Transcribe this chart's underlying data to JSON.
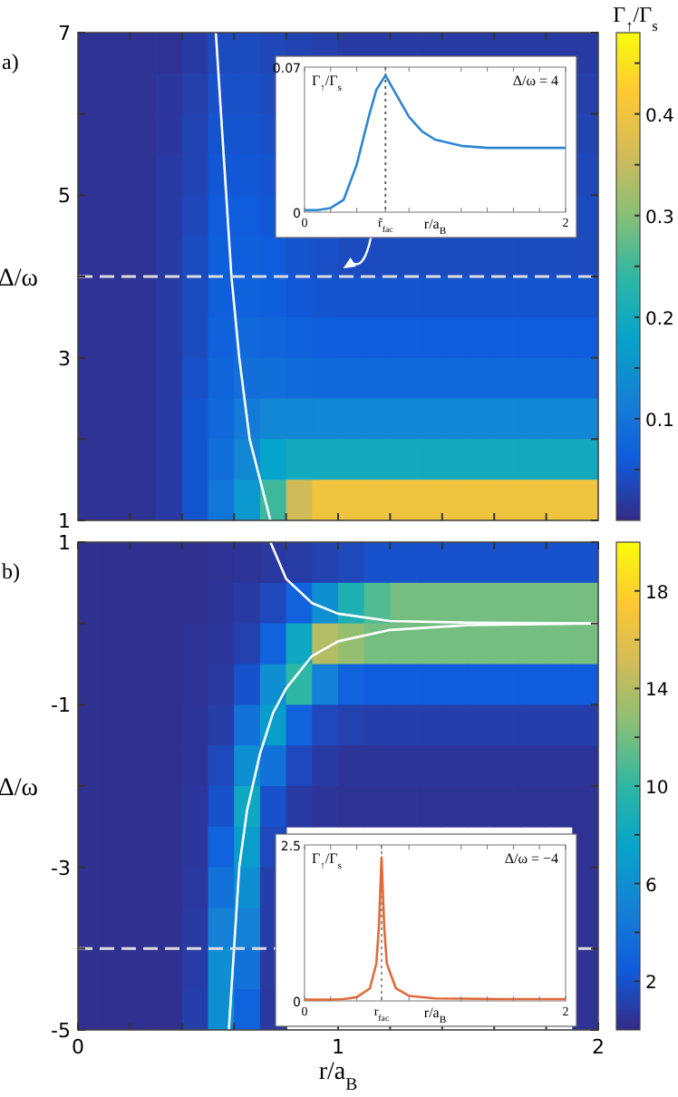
{
  "chart_data": [
    {
      "type": "heatmap",
      "ylabel": "Δ/ω",
      "clabel": "Γ$_{↑}$/Γ$_{s}$",
      "annotations": [
        "a)"
      ],
      "tick_labels": "y",
      "x": [
        0.05,
        0.15,
        0.25,
        0.35,
        0.45,
        0.55,
        0.65,
        0.75,
        0.85,
        0.95,
        1.05,
        1.15,
        1.25,
        1.35,
        1.45,
        1.55,
        1.65,
        1.75,
        1.85,
        1.95
      ],
      "y": [
        6.75,
        6.25,
        5.75,
        5.25,
        4.75,
        4.25,
        3.75,
        3.25,
        2.75,
        2.25,
        1.75,
        1.25
      ],
      "xlim": [
        0,
        2
      ],
      "xticks": [
        {
          "value": 0.2,
          "label": null
        },
        {
          "value": 0.4,
          "label": null
        },
        {
          "value": 0.6,
          "label": null
        },
        {
          "value": 0.8,
          "label": null
        },
        {
          "value": 1,
          "label": null
        },
        {
          "value": 1.2,
          "label": null
        },
        {
          "value": 1.4,
          "label": null
        },
        {
          "value": 1.6,
          "label": null
        },
        {
          "value": 1.8,
          "label": null
        }
      ],
      "ylim": [
        1,
        7
      ],
      "yticks": [
        1,
        {
          "value": 2,
          "label": null
        },
        3,
        {
          "value": 4,
          "label": null
        },
        5,
        {
          "value": 6,
          "label": null
        },
        7
      ],
      "clim": [
        0,
        0.48
      ],
      "cticks": [
        {
          "value": 0.05,
          "label": null
        },
        0.1,
        {
          "value": 0.15,
          "label": null
        },
        0.2,
        {
          "value": 0.25,
          "label": null
        },
        0.3,
        {
          "value": 0.35,
          "label": null
        },
        0.4,
        {
          "value": 0.45,
          "label": null
        }
      ],
      "cells": [
        [
          0.01,
          0.01,
          0.01,
          0.01,
          0.02,
          0.04,
          0.04,
          0.035,
          0.03,
          0.025,
          0.02,
          0.02,
          0.02,
          0.02,
          0.02,
          0.02,
          0.02,
          0.02,
          0.02,
          0.02
        ],
        [
          0.01,
          0.01,
          0.01,
          0.015,
          0.025,
          0.045,
          0.045,
          0.04,
          null,
          null,
          null,
          null,
          null,
          null,
          null,
          null,
          null,
          null,
          null,
          0.025
        ],
        [
          0.01,
          0.01,
          0.01,
          0.015,
          0.03,
          0.05,
          0.05,
          0.045,
          null,
          null,
          null,
          null,
          null,
          null,
          null,
          null,
          null,
          null,
          null,
          0.03
        ],
        [
          0.01,
          0.01,
          0.01,
          0.02,
          0.03,
          0.055,
          0.055,
          0.05,
          null,
          null,
          null,
          null,
          null,
          null,
          null,
          null,
          null,
          null,
          null,
          0.035
        ],
        [
          0.01,
          0.01,
          0.01,
          0.02,
          0.035,
          0.06,
          0.06,
          0.055,
          null,
          null,
          null,
          null,
          null,
          null,
          null,
          null,
          null,
          null,
          null,
          0.04
        ],
        [
          0.01,
          0.01,
          0.01,
          0.02,
          0.04,
          0.065,
          0.065,
          0.06,
          0.05,
          0.045,
          0.04,
          0.04,
          0.04,
          0.04,
          0.04,
          0.04,
          0.04,
          0.04,
          0.04,
          0.04
        ],
        [
          0.01,
          0.01,
          0.01,
          0.02,
          0.04,
          0.065,
          0.07,
          0.065,
          0.055,
          0.05,
          0.05,
          0.05,
          0.05,
          0.05,
          0.05,
          0.05,
          0.05,
          0.05,
          0.05,
          0.05
        ],
        [
          0.01,
          0.01,
          0.01,
          0.02,
          0.04,
          0.07,
          0.08,
          0.075,
          0.07,
          0.065,
          0.06,
          0.06,
          0.06,
          0.06,
          0.06,
          0.06,
          0.06,
          0.06,
          0.06,
          0.06
        ],
        [
          0.01,
          0.01,
          0.01,
          0.02,
          0.045,
          0.075,
          0.09,
          0.09,
          0.085,
          0.08,
          0.08,
          0.08,
          0.08,
          0.08,
          0.08,
          0.08,
          0.08,
          0.08,
          0.08,
          0.08
        ],
        [
          0.01,
          0.01,
          0.01,
          0.02,
          0.05,
          0.08,
          0.11,
          0.13,
          0.13,
          0.13,
          0.13,
          0.13,
          0.13,
          0.13,
          0.13,
          0.13,
          0.13,
          0.13,
          0.13,
          0.13
        ],
        [
          0.01,
          0.01,
          0.01,
          0.02,
          0.05,
          0.09,
          0.13,
          0.18,
          0.2,
          0.2,
          0.2,
          0.2,
          0.2,
          0.2,
          0.2,
          0.2,
          0.2,
          0.2,
          0.2,
          0.2
        ],
        [
          0.01,
          0.01,
          0.01,
          0.02,
          0.05,
          0.1,
          0.16,
          0.25,
          0.36,
          0.4,
          0.4,
          0.4,
          0.4,
          0.4,
          0.4,
          0.4,
          0.4,
          0.4,
          0.4,
          0.4
        ]
      ],
      "series": [
        {
          "type": "line",
          "color": "#ffffff",
          "x": [
            0.53,
            0.55,
            0.57,
            0.59,
            0.62,
            0.66,
            0.7,
            0.74
          ],
          "values": [
            7,
            6,
            5,
            4,
            3,
            2,
            1.5,
            1
          ]
        }
      ],
      "ref_lines": [
        {
          "axis": "y",
          "value": 4,
          "color": "#dddddd",
          "line_style": "dashed"
        }
      ]
    },
    {
      "type": "heatmap",
      "xlabel": "r/a$_{B}$",
      "ylabel": "Δ/ω",
      "annotations": [
        "b)"
      ],
      "x": [
        0.05,
        0.15,
        0.25,
        0.35,
        0.45,
        0.55,
        0.65,
        0.75,
        0.85,
        0.95,
        1.05,
        1.15,
        1.25,
        1.35,
        1.45,
        1.55,
        1.65,
        1.75,
        1.85,
        1.95
      ],
      "y": [
        0.75,
        0.25,
        -0.25,
        -0.75,
        -1.25,
        -1.75,
        -2.25,
        -2.75,
        -3.25,
        -3.75,
        -4.25,
        -4.75
      ],
      "xlim": [
        0,
        2
      ],
      "xticks": [
        0,
        {
          "value": 0.2,
          "label": null
        },
        {
          "value": 0.4,
          "label": null
        },
        {
          "value": 0.6,
          "label": null
        },
        {
          "value": 0.8,
          "label": null
        },
        1,
        {
          "value": 1.2,
          "label": null
        },
        {
          "value": 1.4,
          "label": null
        },
        {
          "value": 1.6,
          "label": null
        },
        {
          "value": 1.8,
          "label": null
        },
        2
      ],
      "ylim": [
        -5,
        1
      ],
      "yticks": [
        -5,
        {
          "value": -4,
          "label": null
        },
        -3,
        {
          "value": -2,
          "label": null
        },
        -1,
        {
          "value": 0,
          "label": null
        },
        1
      ],
      "clim": [
        0,
        20
      ],
      "cticks": [
        2,
        {
          "value": 4,
          "label": null
        },
        6,
        {
          "value": 8,
          "label": null
        },
        10,
        {
          "value": 12,
          "label": null
        },
        14,
        {
          "value": 16,
          "label": null
        },
        18
      ],
      "cells": [
        [
          0.3,
          0.3,
          0.3,
          0.3,
          0.3,
          0.4,
          0.5,
          0.7,
          0.9,
          1.2,
          1.5,
          2,
          2,
          2,
          2,
          2,
          2,
          2,
          2,
          2
        ],
        [
          0.3,
          0.3,
          0.3,
          0.3,
          0.3,
          0.5,
          0.8,
          1.5,
          3,
          6,
          9,
          11,
          12,
          12,
          12,
          12,
          12,
          12,
          12,
          12
        ],
        [
          0.3,
          0.3,
          0.3,
          0.3,
          0.4,
          0.6,
          1.2,
          3,
          8,
          14,
          13,
          12,
          12,
          12,
          12,
          12,
          12,
          12,
          12,
          12
        ],
        [
          0.3,
          0.3,
          0.3,
          0.3,
          0.4,
          0.8,
          2,
          6,
          10,
          5,
          3,
          2.5,
          2.5,
          2.5,
          2.5,
          2.5,
          2.5,
          2.5,
          2.5,
          2.5
        ],
        [
          0.3,
          0.3,
          0.3,
          0.3,
          0.5,
          1,
          4,
          7,
          3,
          1.5,
          1.2,
          1,
          1,
          1,
          1,
          1,
          1,
          1,
          1,
          1
        ],
        [
          0.3,
          0.3,
          0.3,
          0.3,
          0.5,
          1.5,
          6,
          4,
          1.5,
          0.8,
          0.5,
          0.5,
          0.5,
          0.5,
          0.5,
          0.5,
          0.5,
          0.5,
          0.5,
          0.5
        ],
        [
          0.3,
          0.3,
          0.3,
          0.3,
          0.6,
          2,
          8,
          2,
          0.8,
          0.5,
          0.4,
          0.4,
          0.4,
          0.4,
          0.4,
          0.4,
          0.4,
          0.4,
          0.4,
          0.4
        ],
        [
          0.3,
          0.3,
          0.3,
          0.3,
          0.6,
          3,
          7,
          1.5,
          null,
          null,
          null,
          null,
          null,
          null,
          null,
          null,
          null,
          null,
          null,
          0.4
        ],
        [
          0.3,
          0.3,
          0.3,
          0.3,
          0.7,
          4,
          6,
          1,
          null,
          null,
          null,
          null,
          null,
          null,
          null,
          null,
          null,
          null,
          null,
          0.4
        ],
        [
          0.3,
          0.3,
          0.3,
          0.3,
          0.8,
          5,
          5,
          1,
          null,
          null,
          null,
          null,
          null,
          null,
          null,
          null,
          null,
          null,
          null,
          0.4
        ],
        [
          0.3,
          0.3,
          0.3,
          0.3,
          0.9,
          6,
          4,
          0.8,
          null,
          null,
          null,
          null,
          null,
          null,
          null,
          null,
          null,
          null,
          null,
          0.4
        ],
        [
          0.3,
          0.3,
          0.3,
          0.3,
          1,
          6,
          3,
          0.7,
          null,
          null,
          null,
          null,
          null,
          null,
          null,
          null,
          null,
          null,
          null,
          0.4
        ]
      ],
      "series": [
        {
          "type": "line",
          "color": "#ffffff",
          "x": [
            0.74,
            0.8,
            0.9,
            1,
            1.2,
            1.5,
            2
          ],
          "values": [
            1,
            0.55,
            0.25,
            0.12,
            0.03,
            0.01,
            0
          ]
        },
        {
          "type": "line",
          "color": "#ffffff",
          "x": [
            2,
            1.5,
            1.2,
            1,
            0.9,
            0.8,
            0.75,
            0.7,
            0.65,
            0.62,
            0.6,
            0.58
          ],
          "values": [
            0,
            -0.02,
            -0.08,
            -0.22,
            -0.4,
            -0.8,
            -1.1,
            -1.6,
            -2.3,
            -3,
            -4,
            -5
          ]
        }
      ],
      "ref_lines": [
        {
          "axis": "y",
          "value": -4,
          "color": "#dddddd",
          "line_style": "dashed"
        }
      ]
    },
    {
      "type": "line",
      "xlabel": "r/a$_{B}$",
      "ylabel": "Γ$_{↑}$/Γ$_{s}$",
      "annotations": [
        "Δ/ω = 4"
      ],
      "xlim": [
        0,
        2
      ],
      "xticks": [
        0,
        {
          "value": 0.2,
          "label": null
        },
        {
          "value": 0.4,
          "label": null
        },
        {
          "value": 0.62,
          "label": "r̃$_{fac}$"
        },
        {
          "value": 0.8,
          "label": null
        },
        {
          "value": 1.2,
          "label": null
        },
        {
          "value": 1.4,
          "label": null
        },
        {
          "value": 1.6,
          "label": null
        },
        {
          "value": 1.8,
          "label": null
        },
        2
      ],
      "ylim": [
        0,
        0.07
      ],
      "yticks": [
        0,
        0.07
      ],
      "x": [
        0,
        0.1,
        0.2,
        0.3,
        0.4,
        0.5,
        0.55,
        0.62,
        0.7,
        0.8,
        0.9,
        1,
        1.2,
        1.4,
        1.6,
        2
      ],
      "series": [
        {
          "color": "#2e86d0",
          "values": [
            0.001,
            0.001,
            0.002,
            0.006,
            0.023,
            0.048,
            0.059,
            0.066,
            0.057,
            0.046,
            0.039,
            0.035,
            0.032,
            0.031,
            0.031,
            0.031
          ]
        }
      ],
      "ref_lines": [
        {
          "axis": "x",
          "value": 0.62,
          "color": "#555555",
          "line_style": "dotted"
        }
      ]
    },
    {
      "type": "line",
      "xlabel": "r/a$_{B}$",
      "ylabel": "Γ$_{↑}$/Γ$_{s}$",
      "annotations": [
        "Δ/ω = −4"
      ],
      "xlim": [
        0,
        2
      ],
      "xticks": [
        0,
        {
          "value": 0.2,
          "label": null
        },
        {
          "value": 0.4,
          "label": null
        },
        {
          "value": 0.59,
          "label": "r$_{fac}$"
        },
        {
          "value": 0.8,
          "label": null
        },
        {
          "value": 1.2,
          "label": null
        },
        {
          "value": 1.4,
          "label": null
        },
        {
          "value": 1.6,
          "label": null
        },
        {
          "value": 1.8,
          "label": null
        },
        2
      ],
      "ylim": [
        0,
        2.5
      ],
      "yticks": [
        0,
        2.5
      ],
      "x": [
        0,
        0.2,
        0.3,
        0.4,
        0.5,
        0.55,
        0.57,
        0.59,
        0.61,
        0.63,
        0.7,
        0.8,
        1,
        1.5,
        2
      ],
      "series": [
        {
          "color": "#e06b3a",
          "values": [
            0.02,
            0.02,
            0.03,
            0.06,
            0.2,
            0.6,
            1.2,
            2.3,
            1.2,
            0.6,
            0.2,
            0.08,
            0.04,
            0.03,
            0.03
          ]
        }
      ],
      "ref_lines": [
        {
          "axis": "x",
          "value": 0.59,
          "color": "#888888",
          "line_style": "dotted"
        }
      ]
    }
  ]
}
